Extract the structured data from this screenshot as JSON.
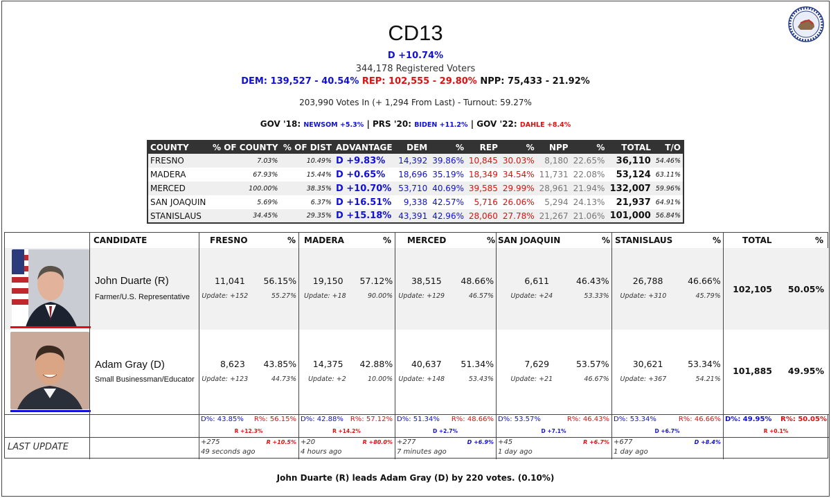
{
  "header": {
    "title": "CD13",
    "margin": "D +10.74%",
    "registered": "344,178 Registered Voters",
    "dem": "DEM: 139,527 - 40.54%",
    "rep": "REP: 102,555 - 29.80%",
    "npp": "NPP: 75,433 - 21.92%",
    "votes_in": "203,990 Votes In (+ 1,294 From Last) - Turnout: 59.27%",
    "prev": {
      "gov18_label": "GOV '18:",
      "gov18_val": "NEWSOM +5.3%",
      "prs20_label": "| PRS '20:",
      "prs20_val": "BIDEN +11.2%",
      "gov22_label": "| GOV '22:",
      "gov22_val": "DAHLE +8.4%"
    },
    "logo_text": "CALIFORNIA TARGET BOOK"
  },
  "colors": {
    "dem": "#1010d8",
    "rep": "#e01010",
    "header_bg": "#333333"
  },
  "county_table": {
    "headers": [
      "COUNTY",
      "% OF COUNTY",
      "% OF DIST",
      "ADVANTAGE",
      "DEM",
      "%",
      "REP",
      "%",
      "NPP",
      "%",
      "TOTAL",
      "T/O"
    ],
    "rows": [
      [
        "FRESNO",
        "7.03%",
        "10.49%",
        "D +9.83%",
        "14,392",
        "39.86%",
        "10,845",
        "30.03%",
        "8,180",
        "22.65%",
        "36,110",
        "54.46%"
      ],
      [
        "MADERA",
        "67.93%",
        "15.44%",
        "D +0.65%",
        "18,696",
        "35.19%",
        "18,349",
        "34.54%",
        "11,731",
        "22.08%",
        "53,124",
        "63.11%"
      ],
      [
        "MERCED",
        "100.00%",
        "38.35%",
        "D +10.70%",
        "53,710",
        "40.69%",
        "39,585",
        "29.99%",
        "28,961",
        "21.94%",
        "132,007",
        "59.96%"
      ],
      [
        "SAN JOAQUIN",
        "5.69%",
        "6.37%",
        "D +16.51%",
        "9,338",
        "42.57%",
        "5,716",
        "26.06%",
        "5,294",
        "24.13%",
        "21,937",
        "64.91%"
      ],
      [
        "STANISLAUS",
        "34.45%",
        "29.35%",
        "D +15.18%",
        "43,391",
        "42.96%",
        "28,060",
        "27.78%",
        "21,267",
        "21.06%",
        "101,000",
        "56.84%"
      ]
    ]
  },
  "results": {
    "headers": {
      "candidate": "CANDIDATE",
      "fresno": "FRESNO",
      "madera": "MADERA",
      "merced": "MERCED",
      "sanjoaquin": "SAN JOAQUIN",
      "stanislaus": "STANISLAUS",
      "total": "TOTAL",
      "pct": "%"
    },
    "candidates": [
      {
        "name": "John Duarte (R)",
        "occupation": "Farmer/U.S. Representative",
        "counties": [
          {
            "votes": "11,041",
            "pct": "56.15%",
            "update": "Update: +152",
            "upd_pct": "55.27%"
          },
          {
            "votes": "19,150",
            "pct": "57.12%",
            "update": "Update: +18",
            "upd_pct": "90.00%"
          },
          {
            "votes": "38,515",
            "pct": "48.66%",
            "update": "Update: +129",
            "upd_pct": "46.57%"
          },
          {
            "votes": "6,611",
            "pct": "46.43%",
            "update": "Update: +24",
            "upd_pct": "53.33%"
          },
          {
            "votes": "26,788",
            "pct": "46.66%",
            "update": "Update: +310",
            "upd_pct": "45.79%"
          }
        ],
        "total": "102,105",
        "total_pct": "50.05%"
      },
      {
        "name": "Adam Gray (D)",
        "occupation": "Small Businessman/Educator",
        "counties": [
          {
            "votes": "8,623",
            "pct": "43.85%",
            "update": "Update: +123",
            "upd_pct": "44.73%"
          },
          {
            "votes": "14,375",
            "pct": "42.88%",
            "update": "Update: +2",
            "upd_pct": "10.00%"
          },
          {
            "votes": "40,637",
            "pct": "51.34%",
            "update": "Update: +148",
            "upd_pct": "53.43%"
          },
          {
            "votes": "7,629",
            "pct": "53.57%",
            "update": "Update: +21",
            "upd_pct": "46.67%"
          },
          {
            "votes": "30,621",
            "pct": "53.34%",
            "update": "Update: +367",
            "upd_pct": "54.21%"
          }
        ],
        "total": "101,885",
        "total_pct": "49.95%"
      }
    ],
    "summary_rows": [
      {
        "d": "D%: 43.85%",
        "r": "R%: 56.15%",
        "adv": "R +12.3%",
        "adv_party": "R"
      },
      {
        "d": "D%: 42.88%",
        "r": "R%: 57.12%",
        "adv": "R +14.2%",
        "adv_party": "R"
      },
      {
        "d": "D%: 51.34%",
        "r": "R%: 48.66%",
        "adv": "D +2.7%",
        "adv_party": "D"
      },
      {
        "d": "D%: 53.57%",
        "r": "R%: 46.43%",
        "adv": "D +7.1%",
        "adv_party": "D"
      },
      {
        "d": "D%: 53.34%",
        "r": "R%: 46.66%",
        "adv": "D +6.7%",
        "adv_party": "D"
      },
      {
        "d": "D%: 49.95%",
        "r": "R%: 50.05%",
        "adv": "R +0.1%",
        "adv_party": "R"
      }
    ],
    "last_update_label": "LAST UPDATE",
    "last_updates": [
      {
        "count": "+275",
        "swing": "R +10.5%",
        "party": "R",
        "ago": "49 seconds ago"
      },
      {
        "count": "+20",
        "swing": "R +80.0%",
        "party": "R",
        "ago": "4 hours ago"
      },
      {
        "count": "+277",
        "swing": "D +6.9%",
        "party": "D",
        "ago": "7 minutes ago"
      },
      {
        "count": "+45",
        "swing": "R +6.7%",
        "party": "R",
        "ago": "1 day ago"
      },
      {
        "count": "+677",
        "swing": "D +8.4%",
        "party": "D",
        "ago": "1 day ago"
      }
    ]
  },
  "summary": "John Duarte (R) leads Adam Gray (D) by 220 votes. (0.10%)"
}
